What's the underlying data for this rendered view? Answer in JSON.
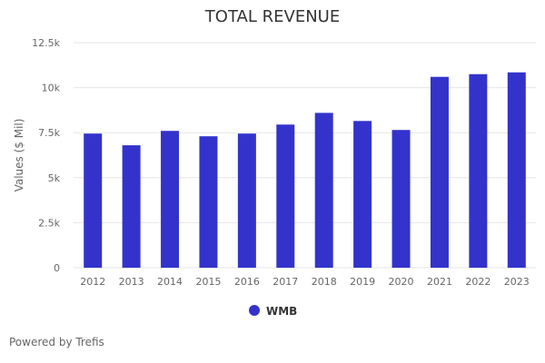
{
  "colors": {
    "bar": "#3333cc",
    "grid": "#e6e6e6",
    "axis_text": "#666666",
    "title_text": "#333333"
  },
  "chart_data": {
    "type": "bar",
    "title": "TOTAL REVENUE",
    "xlabel": "",
    "ylabel": "Values ($ Mil)",
    "ylim": [
      0,
      12500
    ],
    "yticks": [
      0,
      2500,
      5000,
      7500,
      10000,
      12500
    ],
    "ytick_labels": [
      "0",
      "2.5k",
      "5k",
      "7.5k",
      "10k",
      "12.5k"
    ],
    "grid": true,
    "categories": [
      "2012",
      "2013",
      "2014",
      "2015",
      "2016",
      "2017",
      "2018",
      "2019",
      "2020",
      "2021",
      "2022",
      "2023"
    ],
    "series": [
      {
        "name": "WMB",
        "values": [
          7450,
          6800,
          7600,
          7300,
          7450,
          7950,
          8600,
          8150,
          7650,
          10600,
          10750,
          10850
        ]
      }
    ],
    "legend_position": "bottom-center"
  },
  "footer": {
    "credit": "Powered by Trefis"
  }
}
